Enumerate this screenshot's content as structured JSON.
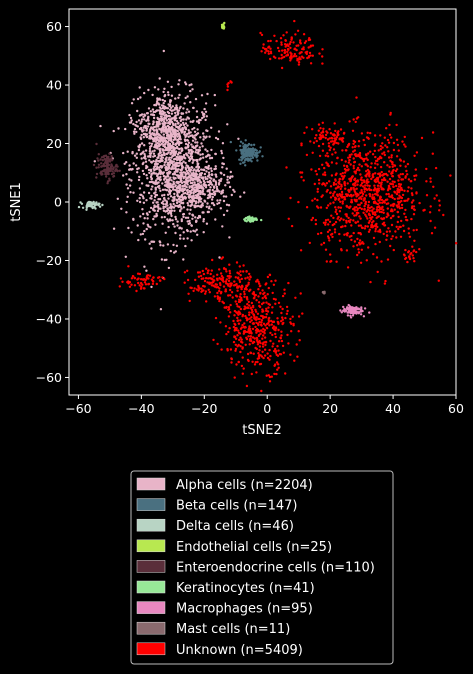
{
  "chart_data": {
    "type": "scatter",
    "title": "",
    "xlabel": "tSNE2",
    "ylabel": "tSNE1",
    "xlim": [
      -63,
      60
    ],
    "ylim": [
      -66,
      66
    ],
    "xticks": [
      -60,
      -40,
      -20,
      0,
      20,
      40,
      60
    ],
    "yticks": [
      -60,
      -40,
      -20,
      0,
      20,
      40,
      60
    ],
    "grid": false,
    "legend_placement": "below",
    "background": "#000000",
    "series": [
      {
        "name": "Alpha cells (n=2204)",
        "color": "#e8b4c8",
        "clusters": [
          {
            "cx": -30,
            "cy": 12,
            "rx": 12,
            "ry": 22
          },
          {
            "cx": -22,
            "cy": 5,
            "rx": 9,
            "ry": 8
          },
          {
            "cx": -33,
            "cy": 25,
            "rx": 7,
            "ry": 10
          }
        ]
      },
      {
        "name": "Beta cells (n=147)",
        "color": "#4a7080",
        "clusters": [
          {
            "cx": -6,
            "cy": 17,
            "rx": 3,
            "ry": 3
          }
        ]
      },
      {
        "name": "Delta cells (n=46)",
        "color": "#b8d4c4",
        "clusters": [
          {
            "cx": -56,
            "cy": -1,
            "rx": 2.5,
            "ry": 1
          }
        ]
      },
      {
        "name": "Endothelial cells (n=25)",
        "color": "#b8e850",
        "clusters": [
          {
            "cx": -14,
            "cy": 60,
            "rx": 0.4,
            "ry": 0.8
          }
        ]
      },
      {
        "name": "Enteroendocrine cells (n=110)",
        "color": "#5a2e3a",
        "clusters": [
          {
            "cx": -51,
            "cy": 12,
            "rx": 3,
            "ry": 4
          }
        ]
      },
      {
        "name": "Keratinocytes (n=41)",
        "color": "#98e898",
        "clusters": [
          {
            "cx": -5,
            "cy": -6,
            "rx": 2,
            "ry": 0.8
          }
        ]
      },
      {
        "name": "Macrophages (n=95)",
        "color": "#e888c0",
        "clusters": [
          {
            "cx": 27,
            "cy": -37,
            "rx": 3,
            "ry": 1.5
          }
        ]
      },
      {
        "name": "Mast cells (n=11)",
        "color": "#8a6a6e",
        "clusters": [
          {
            "cx": 18,
            "cy": -31,
            "rx": 0.5,
            "ry": 0.5
          }
        ]
      },
      {
        "name": "Unknown (n=5409)",
        "color": "#ff0000",
        "clusters": [
          {
            "cx": 7,
            "cy": 52,
            "rx": 8,
            "ry": 5
          },
          {
            "cx": 32,
            "cy": 3,
            "rx": 16,
            "ry": 18
          },
          {
            "cx": 20,
            "cy": 22,
            "rx": 6,
            "ry": 4
          },
          {
            "cx": -15,
            "cy": -28,
            "rx": 9,
            "ry": 6
          },
          {
            "cx": -3,
            "cy": -42,
            "rx": 10,
            "ry": 14
          },
          {
            "cx": -40,
            "cy": -27,
            "rx": 6,
            "ry": 3
          },
          {
            "cx": -12,
            "cy": 40,
            "rx": 1.5,
            "ry": 1.5
          },
          {
            "cx": 45,
            "cy": -18,
            "rx": 2.5,
            "ry": 2.5
          }
        ]
      }
    ]
  }
}
